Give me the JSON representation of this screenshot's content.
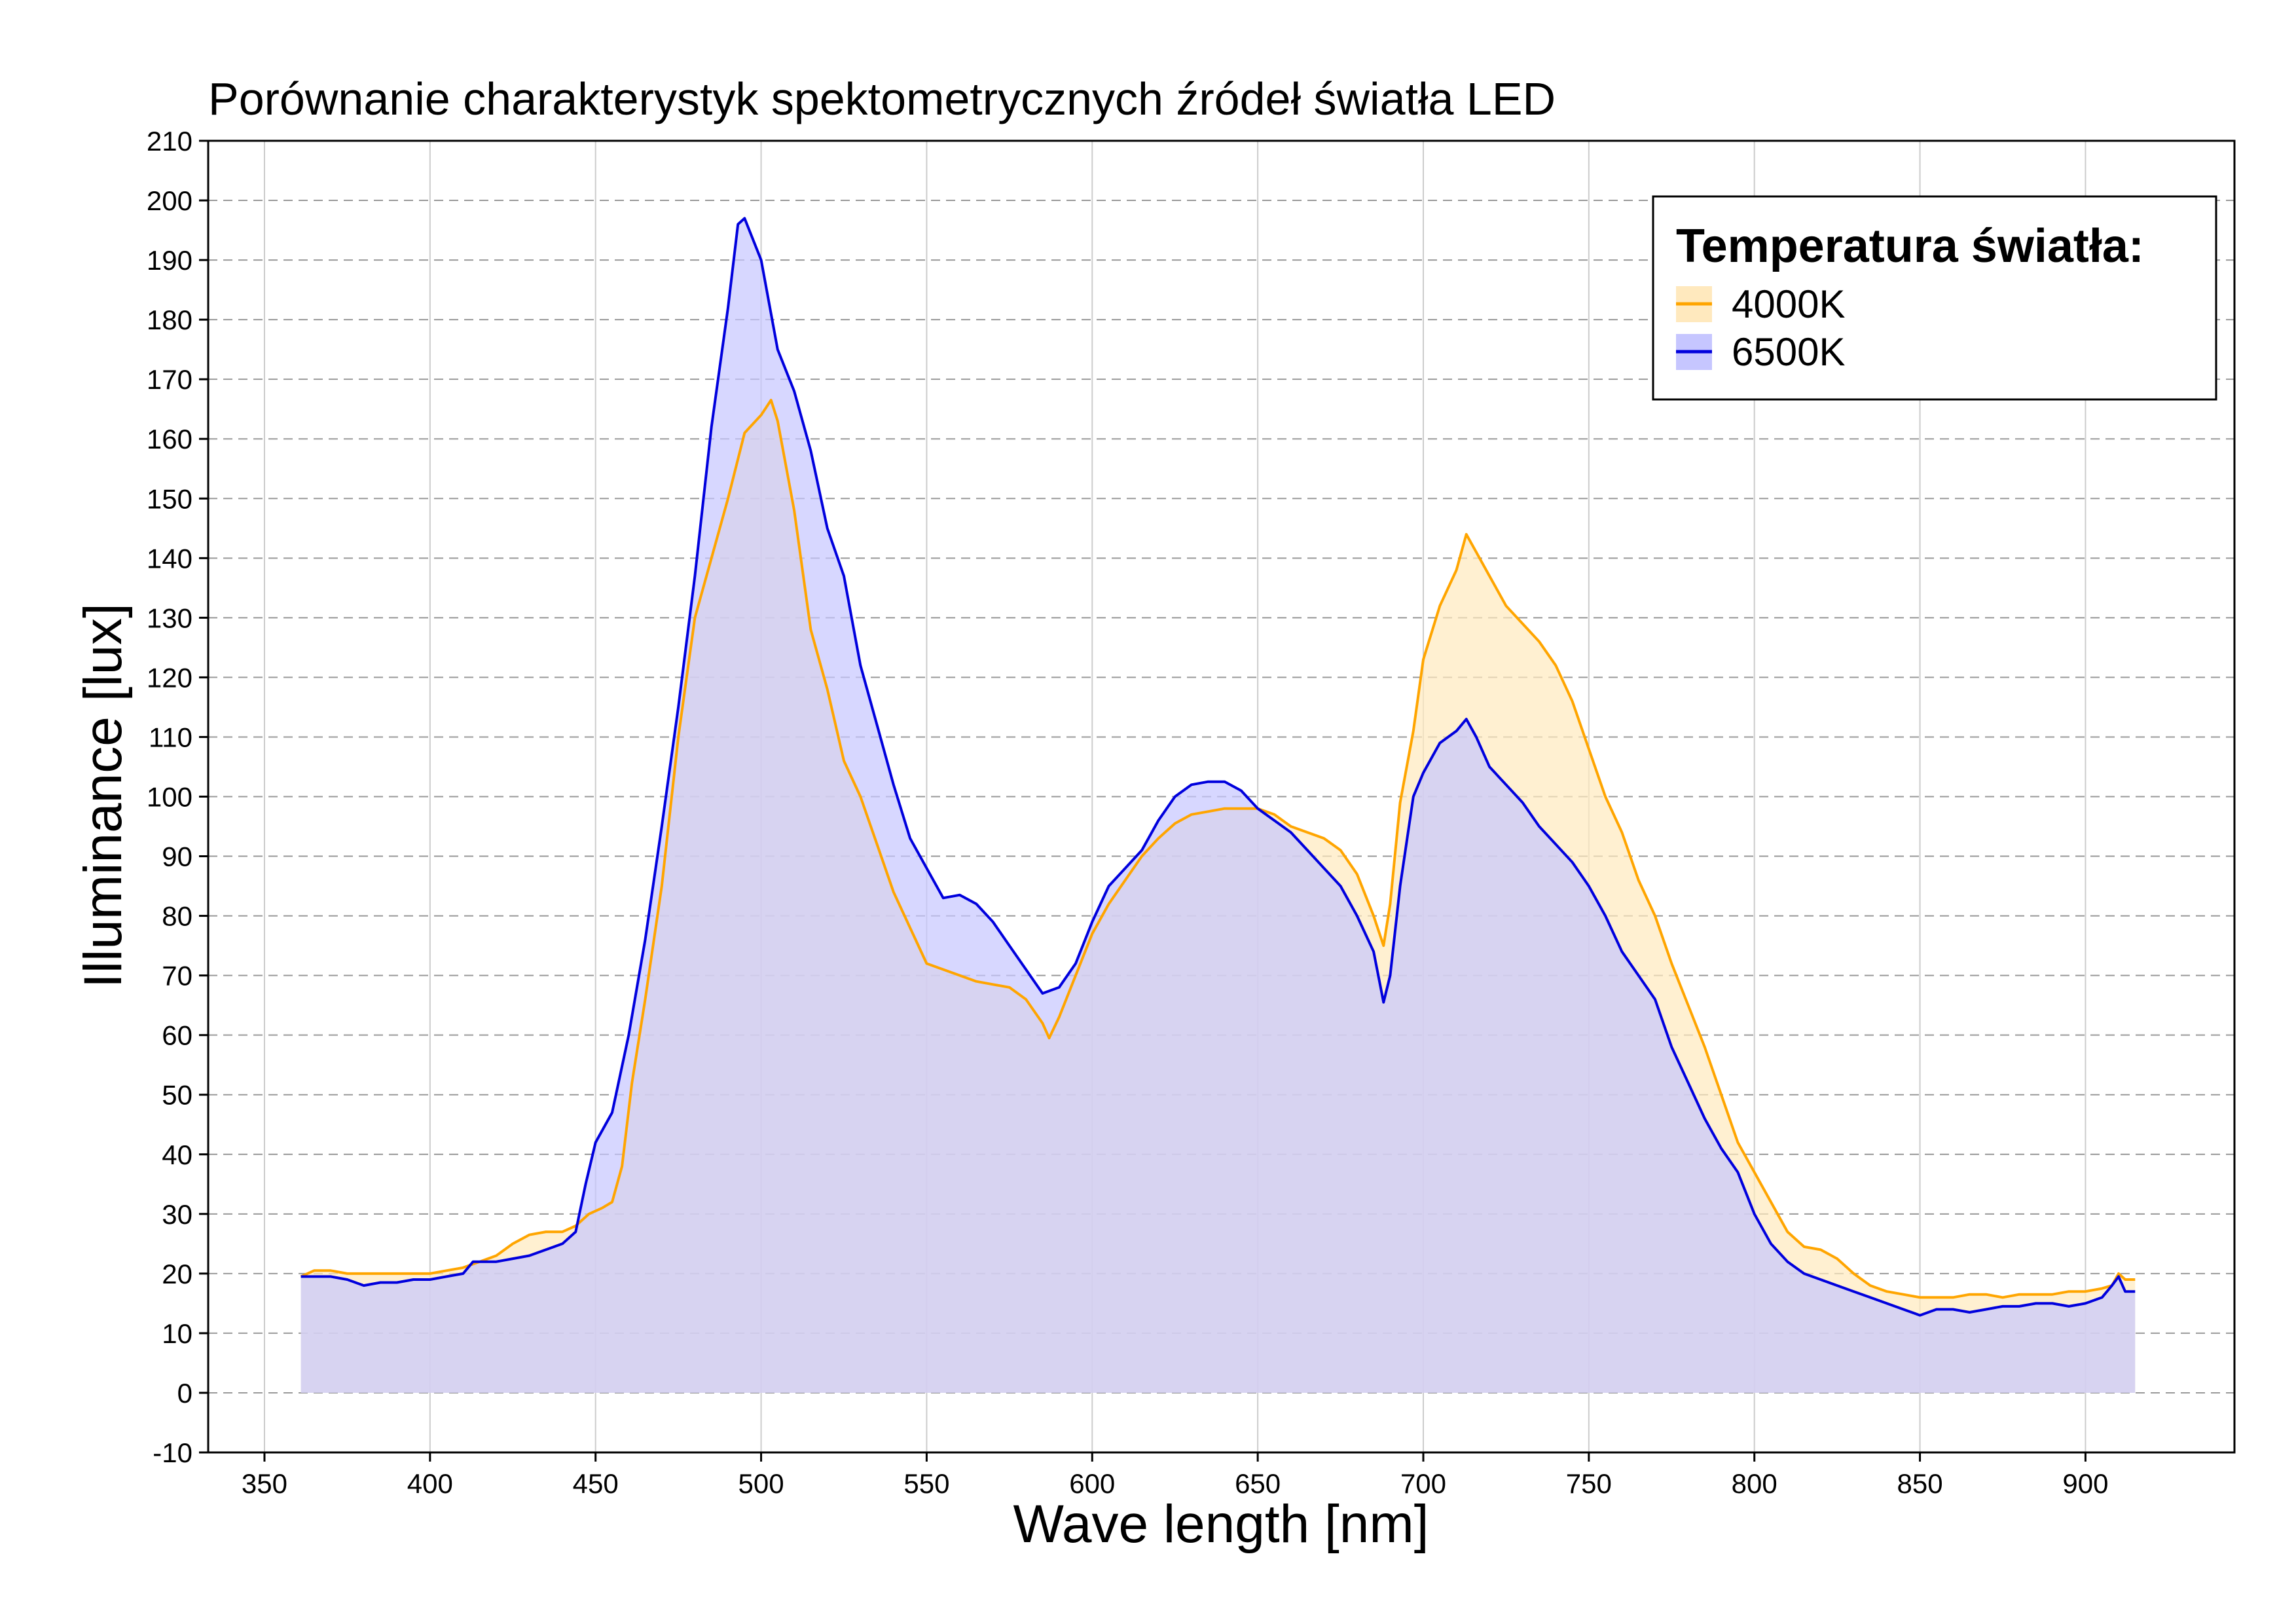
{
  "chart_data": {
    "type": "area",
    "title": "Porównanie charakterystyk spektometrycznych źródeł światła LED",
    "xlabel": "Wave length [nm]",
    "ylabel": "Illuminance [lux]",
    "xlim": [
      333,
      945
    ],
    "ylim": [
      -10,
      210
    ],
    "x_ticks": [
      350,
      400,
      450,
      500,
      550,
      600,
      650,
      700,
      750,
      800,
      850,
      900
    ],
    "y_ticks": [
      -10,
      0,
      10,
      20,
      30,
      40,
      50,
      60,
      70,
      80,
      90,
      100,
      110,
      120,
      130,
      140,
      150,
      160,
      170,
      180,
      190,
      200,
      210
    ],
    "grid": {
      "vertical": "solid",
      "horizontal": "dashed"
    },
    "legend": {
      "title": "Temperatura światła:",
      "position": "top-right"
    },
    "series": [
      {
        "name": "4000K",
        "color": "#FFA500",
        "fill": "#FFE9BE",
        "points": [
          [
            361,
            19.5
          ],
          [
            365,
            20.5
          ],
          [
            370,
            20.5
          ],
          [
            375,
            20
          ],
          [
            380,
            20
          ],
          [
            385,
            20
          ],
          [
            390,
            20
          ],
          [
            395,
            20
          ],
          [
            400,
            20
          ],
          [
            405,
            20.5
          ],
          [
            410,
            21
          ],
          [
            415,
            22
          ],
          [
            420,
            23
          ],
          [
            425,
            25
          ],
          [
            430,
            26.5
          ],
          [
            435,
            27
          ],
          [
            440,
            27
          ],
          [
            444,
            28
          ],
          [
            448,
            30
          ],
          [
            452,
            31
          ],
          [
            455,
            32
          ],
          [
            458,
            38
          ],
          [
            461,
            52
          ],
          [
            465,
            66
          ],
          [
            470,
            85
          ],
          [
            475,
            110
          ],
          [
            480,
            130
          ],
          [
            485,
            140
          ],
          [
            490,
            150
          ],
          [
            495,
            161
          ],
          [
            500,
            164
          ],
          [
            503,
            166.5
          ],
          [
            505,
            163
          ],
          [
            510,
            148
          ],
          [
            515,
            128
          ],
          [
            520,
            118
          ],
          [
            525,
            106
          ],
          [
            530,
            100
          ],
          [
            535,
            92
          ],
          [
            540,
            84
          ],
          [
            545,
            78
          ],
          [
            550,
            72
          ],
          [
            555,
            71
          ],
          [
            560,
            70
          ],
          [
            565,
            69
          ],
          [
            570,
            68.5
          ],
          [
            575,
            68
          ],
          [
            580,
            66
          ],
          [
            585,
            62
          ],
          [
            587,
            59.5
          ],
          [
            590,
            63
          ],
          [
            595,
            70
          ],
          [
            600,
            77
          ],
          [
            605,
            82
          ],
          [
            610,
            86
          ],
          [
            615,
            90
          ],
          [
            620,
            93
          ],
          [
            625,
            95.5
          ],
          [
            630,
            97
          ],
          [
            635,
            97.5
          ],
          [
            640,
            98
          ],
          [
            645,
            98
          ],
          [
            650,
            98
          ],
          [
            655,
            97
          ],
          [
            660,
            95
          ],
          [
            665,
            94
          ],
          [
            670,
            93
          ],
          [
            675,
            91
          ],
          [
            680,
            87
          ],
          [
            685,
            80
          ],
          [
            688,
            75
          ],
          [
            690,
            82
          ],
          [
            693,
            99
          ],
          [
            697,
            111
          ],
          [
            700,
            123
          ],
          [
            705,
            132
          ],
          [
            710,
            138
          ],
          [
            713,
            144
          ],
          [
            716,
            141
          ],
          [
            720,
            137
          ],
          [
            725,
            132
          ],
          [
            730,
            129
          ],
          [
            735,
            126
          ],
          [
            740,
            122
          ],
          [
            745,
            116
          ],
          [
            750,
            108
          ],
          [
            755,
            100
          ],
          [
            760,
            94
          ],
          [
            765,
            86
          ],
          [
            770,
            80
          ],
          [
            775,
            72
          ],
          [
            780,
            65
          ],
          [
            785,
            58
          ],
          [
            790,
            50
          ],
          [
            795,
            42
          ],
          [
            800,
            37
          ],
          [
            805,
            32
          ],
          [
            810,
            27
          ],
          [
            815,
            24.5
          ],
          [
            820,
            24
          ],
          [
            825,
            22.5
          ],
          [
            830,
            20
          ],
          [
            835,
            18
          ],
          [
            840,
            17
          ],
          [
            845,
            16.5
          ],
          [
            850,
            16
          ],
          [
            855,
            16
          ],
          [
            860,
            16
          ],
          [
            865,
            16.5
          ],
          [
            870,
            16.5
          ],
          [
            875,
            16
          ],
          [
            880,
            16.5
          ],
          [
            885,
            16.5
          ],
          [
            890,
            16.5
          ],
          [
            895,
            17
          ],
          [
            900,
            17
          ],
          [
            905,
            17.5
          ],
          [
            908,
            18
          ],
          [
            910,
            20
          ],
          [
            912,
            19
          ],
          [
            915,
            19
          ]
        ]
      },
      {
        "name": "6500K",
        "color": "#0000DD",
        "fill": "#C6C6FF",
        "points": [
          [
            361,
            19.5
          ],
          [
            365,
            19.5
          ],
          [
            370,
            19.5
          ],
          [
            375,
            19
          ],
          [
            380,
            18
          ],
          [
            385,
            18.5
          ],
          [
            390,
            18.5
          ],
          [
            395,
            19
          ],
          [
            400,
            19
          ],
          [
            405,
            19.5
          ],
          [
            410,
            20
          ],
          [
            413,
            22
          ],
          [
            420,
            22
          ],
          [
            425,
            22.5
          ],
          [
            430,
            23
          ],
          [
            435,
            24
          ],
          [
            440,
            25
          ],
          [
            444,
            27
          ],
          [
            447,
            35
          ],
          [
            450,
            42
          ],
          [
            455,
            47
          ],
          [
            460,
            60
          ],
          [
            465,
            76
          ],
          [
            470,
            95
          ],
          [
            475,
            115
          ],
          [
            480,
            137
          ],
          [
            485,
            162
          ],
          [
            490,
            182
          ],
          [
            493,
            196
          ],
          [
            495,
            197
          ],
          [
            500,
            190
          ],
          [
            505,
            175
          ],
          [
            510,
            168
          ],
          [
            515,
            158
          ],
          [
            520,
            145
          ],
          [
            525,
            137
          ],
          [
            530,
            122
          ],
          [
            535,
            112
          ],
          [
            540,
            102
          ],
          [
            545,
            93
          ],
          [
            550,
            88
          ],
          [
            555,
            83
          ],
          [
            560,
            83.5
          ],
          [
            565,
            82
          ],
          [
            570,
            79
          ],
          [
            575,
            75
          ],
          [
            580,
            71
          ],
          [
            585,
            67
          ],
          [
            590,
            68
          ],
          [
            595,
            72
          ],
          [
            600,
            79
          ],
          [
            605,
            85
          ],
          [
            610,
            88
          ],
          [
            615,
            91
          ],
          [
            620,
            96
          ],
          [
            625,
            100
          ],
          [
            630,
            102
          ],
          [
            635,
            102.5
          ],
          [
            640,
            102.5
          ],
          [
            645,
            101
          ],
          [
            650,
            98
          ],
          [
            655,
            96
          ],
          [
            660,
            94
          ],
          [
            665,
            91
          ],
          [
            670,
            88
          ],
          [
            675,
            85
          ],
          [
            680,
            80
          ],
          [
            685,
            74
          ],
          [
            688,
            65.5
          ],
          [
            690,
            70
          ],
          [
            693,
            85
          ],
          [
            697,
            100
          ],
          [
            700,
            104
          ],
          [
            705,
            109
          ],
          [
            710,
            111
          ],
          [
            713,
            113
          ],
          [
            716,
            110
          ],
          [
            720,
            105
          ],
          [
            725,
            102
          ],
          [
            730,
            99
          ],
          [
            735,
            95
          ],
          [
            740,
            92
          ],
          [
            745,
            89
          ],
          [
            750,
            85
          ],
          [
            755,
            80
          ],
          [
            760,
            74
          ],
          [
            765,
            70
          ],
          [
            770,
            66
          ],
          [
            775,
            58
          ],
          [
            780,
            52
          ],
          [
            785,
            46
          ],
          [
            790,
            41
          ],
          [
            795,
            37
          ],
          [
            800,
            30
          ],
          [
            805,
            25
          ],
          [
            810,
            22
          ],
          [
            815,
            20
          ],
          [
            820,
            19
          ],
          [
            825,
            18
          ],
          [
            830,
            17
          ],
          [
            835,
            16
          ],
          [
            840,
            15
          ],
          [
            845,
            14
          ],
          [
            850,
            13
          ],
          [
            855,
            14
          ],
          [
            860,
            14
          ],
          [
            865,
            13.5
          ],
          [
            870,
            14
          ],
          [
            875,
            14.5
          ],
          [
            880,
            14.5
          ],
          [
            885,
            15
          ],
          [
            890,
            15
          ],
          [
            895,
            14.5
          ],
          [
            900,
            15
          ],
          [
            905,
            16
          ],
          [
            908,
            18
          ],
          [
            910,
            19.5
          ],
          [
            912,
            17
          ],
          [
            915,
            17
          ]
        ]
      }
    ]
  }
}
